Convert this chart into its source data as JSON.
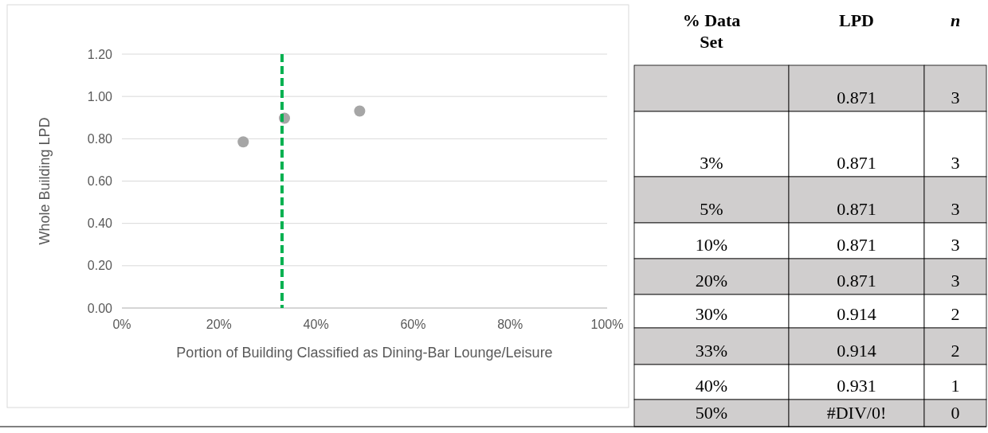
{
  "chart_data": [
    {
      "type": "scatter",
      "xlabel": "Portion of Building Classified as Dining-Bar Lounge/Leisure",
      "ylabel": "Whole Building LPD",
      "series": [
        {
          "color": "#a6a6a6",
          "x": [
            25,
            33.5,
            49
          ],
          "values": [
            0.785,
            0.897,
            0.931
          ]
        }
      ],
      "marker": "circle",
      "grid": "y",
      "xlim": [
        0,
        100
      ],
      "xticks": [
        {
          "value": 0,
          "label": "0%"
        },
        {
          "value": 20,
          "label": "20%"
        },
        {
          "value": 40,
          "label": "40%"
        },
        {
          "value": 60,
          "label": "60%"
        },
        {
          "value": 80,
          "label": "80%"
        },
        {
          "value": 100,
          "label": "100%"
        }
      ],
      "ylim": [
        0,
        1.2
      ],
      "yticks": [
        {
          "value": 0,
          "label": "0.00"
        },
        {
          "value": 0.2,
          "label": "0.20"
        },
        {
          "value": 0.4,
          "label": "0.40"
        },
        {
          "value": 0.6,
          "label": "0.60"
        },
        {
          "value": 0.8,
          "label": "0.80"
        },
        {
          "value": 1,
          "label": "1.00"
        },
        {
          "value": 1.2,
          "label": "1.20"
        }
      ],
      "ref_lines": [
        {
          "axis": "x",
          "value": 33,
          "color": "#00b050",
          "line_style": "dashed"
        }
      ]
    },
    {
      "type": "other",
      "categories": [
        "% Data Set",
        "LPD",
        "n"
      ],
      "cell_labels": [
        [
          null,
          "0.871",
          "3"
        ],
        [
          "3%",
          "0.871",
          "3"
        ],
        [
          "5%",
          "0.871",
          "3"
        ],
        [
          "10%",
          "0.871",
          "3"
        ],
        [
          "20%",
          "0.871",
          "3"
        ],
        [
          "30%",
          "0.914",
          "2"
        ],
        [
          "33%",
          "0.914",
          "2"
        ],
        [
          "40%",
          "0.931",
          "1"
        ],
        [
          "50%",
          "#DIV/0!",
          "0"
        ]
      ]
    }
  ]
}
